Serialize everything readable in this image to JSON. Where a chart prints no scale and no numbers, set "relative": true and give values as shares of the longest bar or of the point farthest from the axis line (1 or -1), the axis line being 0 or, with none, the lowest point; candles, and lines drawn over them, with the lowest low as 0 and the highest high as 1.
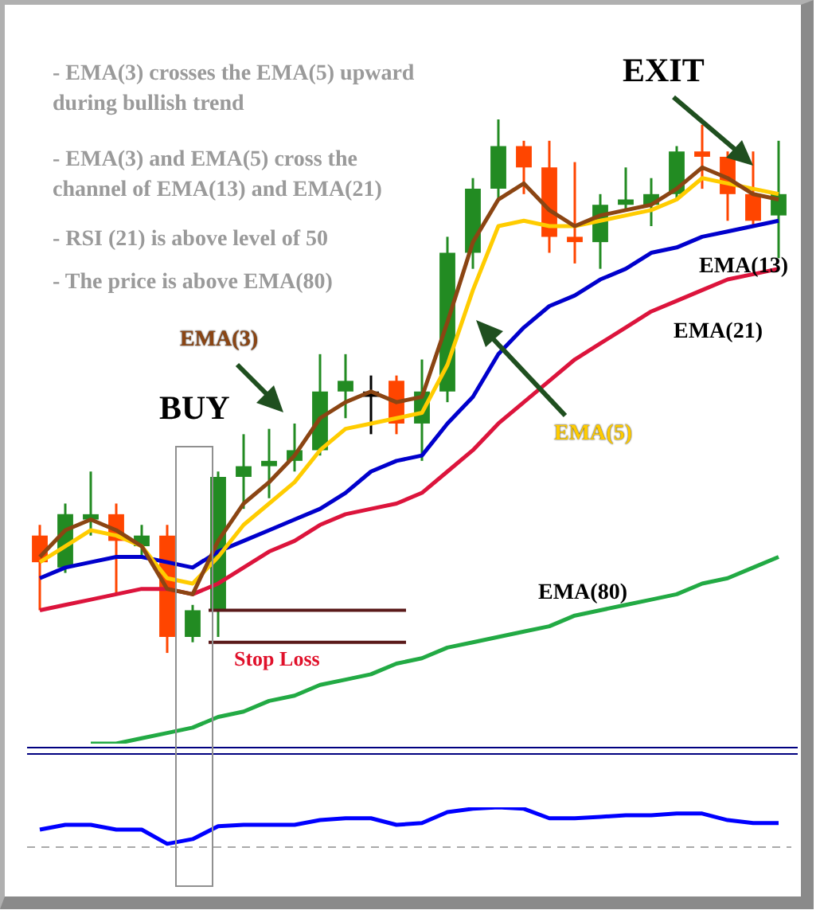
{
  "chart_data": [
    {
      "type": "candlestick",
      "relative": true,
      "categories": [
        null,
        null,
        null,
        null,
        null,
        null,
        null,
        null,
        null,
        null,
        null,
        null,
        null,
        null,
        null,
        null,
        null,
        null,
        null,
        null,
        null,
        null,
        null,
        null,
        null,
        null,
        null,
        null,
        null,
        null
      ],
      "ohlc": [
        [
          0.22,
          0.24,
          0.08,
          0.17
        ],
        [
          0.16,
          0.28,
          0.15,
          0.26
        ],
        [
          0.25,
          0.34,
          0.22,
          0.26
        ],
        [
          0.26,
          0.28,
          0.11,
          0.21
        ],
        [
          0.2,
          0.24,
          0.18,
          0.22
        ],
        [
          0.22,
          0.24,
          0,
          0.03
        ],
        [
          0.03,
          0.09,
          0.02,
          0.08
        ],
        [
          0.08,
          0.34,
          0.03,
          0.33
        ],
        [
          0.33,
          0.41,
          0.27,
          0.35
        ],
        [
          0.35,
          0.42,
          0.29,
          0.36
        ],
        [
          0.36,
          0.43,
          0.34,
          0.38
        ],
        [
          0.38,
          0.56,
          0.37,
          0.49
        ],
        [
          0.49,
          0.56,
          0.44,
          0.51
        ],
        [
          0.48,
          0.52,
          0.41,
          0.49
        ],
        [
          0.51,
          0.52,
          0.41,
          0.43
        ],
        [
          0.43,
          0.55,
          0.36,
          0.49
        ],
        [
          0.49,
          0.78,
          0.47,
          0.75
        ],
        [
          0.75,
          0.89,
          0.72,
          0.87
        ],
        [
          0.87,
          1,
          0.85,
          0.95
        ],
        [
          0.95,
          0.96,
          0.86,
          0.91
        ],
        [
          0.91,
          0.96,
          0.75,
          0.78
        ],
        [
          0.78,
          0.92,
          0.73,
          0.77
        ],
        [
          0.77,
          0.86,
          0.72,
          0.84
        ],
        [
          0.84,
          0.91,
          0.83,
          0.85
        ],
        [
          0.84,
          0.89,
          0.8,
          0.86
        ],
        [
          0.86,
          0.95,
          0.85,
          0.94
        ],
        [
          0.94,
          0.99,
          0.87,
          0.93
        ],
        [
          0.93,
          0.94,
          0.81,
          0.86
        ],
        [
          0.86,
          0.94,
          0.8,
          0.81
        ],
        [
          0.82,
          0.96,
          0.74,
          0.86
        ]
      ],
      "colors": [
        "#ff4500",
        "#228b22",
        "#228b22",
        "#ff4500",
        "#228b22",
        "#ff4500",
        "#228b22",
        "#228b22",
        "#228b22",
        "#228b22",
        "#228b22",
        "#228b22",
        "#228b22",
        "#000000",
        "#ff4500",
        "#228b22",
        "#228b22",
        "#228b22",
        "#228b22",
        "#ff4500",
        "#ff4500",
        "#ff4500",
        "#228b22",
        "#228b22",
        "#228b22",
        "#228b22",
        "#ff4500",
        "#ff4500",
        "#ff4500",
        "#228b22"
      ],
      "series": [
        {
          "name": "EMA(3)",
          "type": "line",
          "color": "#8b4513",
          "values": [
            0.18,
            0.23,
            0.25,
            0.23,
            0.2,
            0.12,
            0.11,
            0.21,
            0.28,
            0.32,
            0.37,
            0.44,
            0.47,
            0.49,
            0.47,
            0.48,
            0.62,
            0.77,
            0.85,
            0.88,
            0.83,
            0.8,
            0.82,
            0.83,
            0.84,
            0.87,
            0.91,
            0.89,
            0.86,
            0.85
          ]
        },
        {
          "name": "EMA(5)",
          "type": "line",
          "color": "#ffcc00",
          "values": [
            0.17,
            0.2,
            0.23,
            0.22,
            0.2,
            0.14,
            0.13,
            0.18,
            0.24,
            0.28,
            0.32,
            0.38,
            0.42,
            0.43,
            0.44,
            0.45,
            0.54,
            0.68,
            0.8,
            0.81,
            0.8,
            0.8,
            0.81,
            0.82,
            0.83,
            0.85,
            0.89,
            0.88,
            0.87,
            0.86
          ]
        },
        {
          "name": "EMA(13)",
          "type": "line",
          "color": "#0000cc",
          "values": [
            0.14,
            0.16,
            0.17,
            0.18,
            0.18,
            0.17,
            0.16,
            0.19,
            0.21,
            0.23,
            0.25,
            0.27,
            0.3,
            0.34,
            0.36,
            0.37,
            0.43,
            0.48,
            0.56,
            0.61,
            0.65,
            0.67,
            0.7,
            0.72,
            0.75,
            0.76,
            0.78,
            0.79,
            0.8,
            0.81
          ]
        },
        {
          "name": "EMA(21)",
          "type": "line",
          "color": "#dc143c",
          "values": [
            0.08,
            0.09,
            0.1,
            0.11,
            0.12,
            0.12,
            0.11,
            0.13,
            0.16,
            0.19,
            0.21,
            0.24,
            0.26,
            0.27,
            0.28,
            0.3,
            0.34,
            0.38,
            0.43,
            0.47,
            0.51,
            0.55,
            0.58,
            0.61,
            0.64,
            0.66,
            0.68,
            0.7,
            0.71,
            0.72
          ]
        },
        {
          "name": "EMA(80)",
          "type": "line",
          "color": "#22aa44",
          "values": [
            null,
            null,
            -0.17,
            -0.17,
            -0.16,
            -0.15,
            -0.14,
            -0.12,
            -0.11,
            -0.09,
            -0.08,
            -0.06,
            -0.05,
            -0.04,
            -0.02,
            -0.01,
            0.01,
            0.02,
            0.03,
            0.04,
            0.05,
            0.07,
            0.08,
            0.09,
            0.1,
            0.11,
            0.13,
            0.14,
            0.16,
            0.18
          ]
        }
      ],
      "ref_lines": [
        {
          "axis": "y",
          "value": 0.08,
          "color": "#5a1a1a"
        },
        {
          "axis": "y",
          "value": 0.02,
          "label": "Stop Loss",
          "color": "#5a1a1a"
        }
      ],
      "annotations": [
        "- EMA(3) crosses the EMA(5) upward during  bullish trend",
        "- EMA(3) and EMA(5) cross the channel of EMA(13) and EMA(21)",
        "- RSI (21) is above level of 50",
        "- The price is above EMA(80)",
        "BUY",
        "EXIT"
      ]
    },
    {
      "type": "line",
      "relative": true,
      "categories": [
        null,
        null,
        null,
        null,
        null,
        null,
        null,
        null,
        null,
        null,
        null,
        null,
        null,
        null,
        null,
        null,
        null,
        null,
        null,
        null,
        null,
        null,
        null,
        null,
        null,
        null,
        null,
        null,
        null,
        null
      ],
      "series": [
        {
          "color": "#0000ff",
          "values": [
            0.39,
            0.52,
            0.52,
            0.39,
            0.39,
            0,
            0.13,
            0.48,
            0.52,
            0.52,
            0.52,
            0.65,
            0.7,
            0.7,
            0.52,
            0.57,
            0.87,
            0.96,
            1,
            0.96,
            0.7,
            0.7,
            0.74,
            0.78,
            0.78,
            0.83,
            0.83,
            0.65,
            0.57,
            0.57
          ]
        }
      ],
      "ref_lines": [
        {
          "axis": "y",
          "value": -0.09,
          "color": "#aaaaaa",
          "line_style": "dashed"
        }
      ]
    }
  ]
}
